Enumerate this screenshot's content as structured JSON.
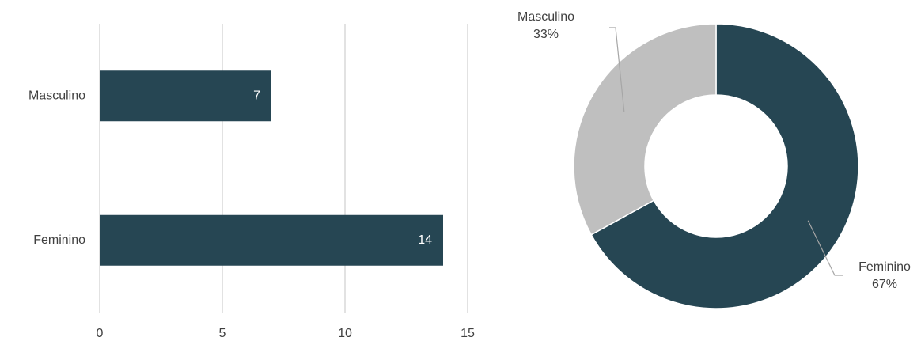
{
  "chart_data": [
    {
      "type": "bar",
      "orientation": "horizontal",
      "categories": [
        "Masculino",
        "Feminino"
      ],
      "values": [
        7,
        14
      ],
      "color": "#264653",
      "xlim": [
        0,
        15
      ],
      "xticks": [
        0,
        5,
        10,
        15
      ],
      "grid": true
    },
    {
      "type": "pie",
      "categories": [
        "Feminino",
        "Masculino"
      ],
      "values": [
        67,
        33
      ],
      "value_labels": [
        "67%",
        "33%"
      ],
      "colors": [
        "#264653",
        "#bfbfbf"
      ]
    }
  ]
}
